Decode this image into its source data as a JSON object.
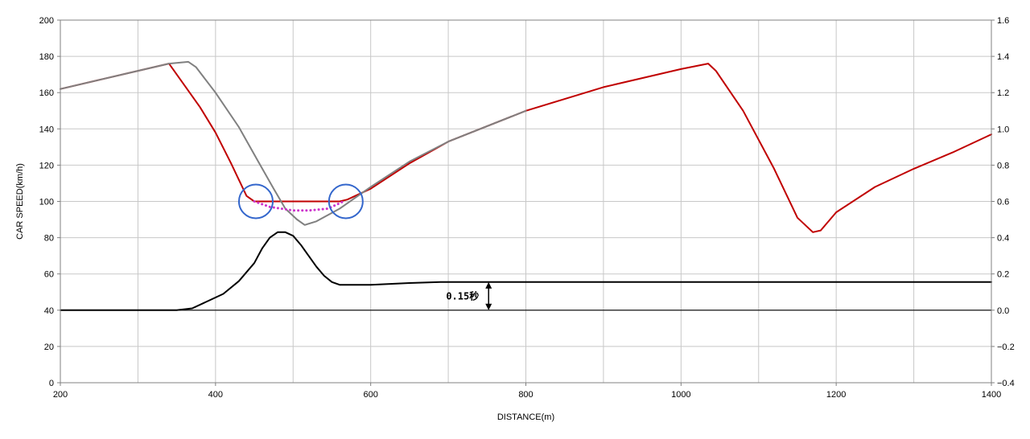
{
  "chart_data": {
    "type": "line",
    "title": "",
    "xlabel": "DISTANCE(m)",
    "ylabel": "CAR SPEED(km/h)",
    "xlim": [
      200,
      1400
    ],
    "ylim": [
      0,
      200
    ],
    "y2lim": [
      -0.4,
      1.6
    ],
    "grid": true,
    "x_ticks": [
      "200",
      "400",
      "600",
      "800",
      "1000",
      "1200",
      "1400"
    ],
    "y_ticks": [
      "0",
      "20",
      "40",
      "60",
      "80",
      "100",
      "120",
      "140",
      "160",
      "180",
      "200"
    ],
    "y2_ticks": [
      "-0.4",
      "-0.2",
      "0.0",
      "0.2",
      "0.4",
      "0.6",
      "0.8",
      "1.0",
      "1.2",
      "1.4",
      "1.6"
    ],
    "annotation": "0.15秒",
    "colors": {
      "speed_red": "#c00000",
      "speed_gray": "#808080",
      "ideal_dotted": "#cc33cc",
      "circle": "#3366cc",
      "time_diff": "#000000",
      "grid": "#c8c8c8"
    },
    "series": [
      {
        "axis": "left",
        "color": "#c00000",
        "x": [
          200,
          250,
          300,
          340,
          360,
          380,
          400,
          420,
          440,
          450,
          460,
          500,
          560,
          570,
          600,
          650,
          700,
          800,
          900,
          1000,
          1035,
          1045,
          1080,
          1120,
          1150,
          1170,
          1180,
          1200,
          1250,
          1300,
          1350,
          1400
        ],
        "y": [
          162,
          167,
          172,
          176,
          164,
          152,
          138,
          121,
          103,
          100,
          100,
          100,
          100,
          101,
          107,
          121,
          133,
          150,
          163,
          173,
          176,
          172,
          150,
          118,
          91,
          83,
          84,
          94,
          108,
          118,
          127,
          137
        ]
      },
      {
        "axis": "left",
        "color": "#808080",
        "x": [
          200,
          300,
          340,
          365,
          375,
          400,
          430,
          455,
          475,
          490,
          505,
          515,
          530,
          560,
          600,
          650,
          700,
          800
        ],
        "y": [
          162,
          172,
          176,
          177,
          174,
          160,
          141,
          122,
          107,
          96,
          90,
          87,
          89,
          96,
          108,
          122,
          133,
          150
        ]
      },
      {
        "axis": "left",
        "color": "#cc33cc",
        "style": "dotted",
        "x": [
          450,
          470,
          500,
          520,
          545,
          565
        ],
        "y": [
          100,
          97,
          95,
          95,
          96,
          100
        ]
      },
      {
        "axis": "right",
        "color": "#000000",
        "x": [
          200,
          350,
          370,
          390,
          410,
          430,
          450,
          460,
          470,
          480,
          490,
          500,
          510,
          520,
          530,
          540,
          550,
          560,
          600,
          650,
          690,
          700,
          1400
        ],
        "y": [
          0.0,
          0.0,
          0.01,
          0.05,
          0.09,
          0.16,
          0.26,
          0.34,
          0.4,
          0.43,
          0.43,
          0.41,
          0.36,
          0.3,
          0.24,
          0.19,
          0.155,
          0.14,
          0.14,
          0.15,
          0.155,
          0.155,
          0.155
        ]
      },
      {
        "axis": "right",
        "color": "#000000",
        "x": [
          200,
          1400
        ],
        "y": [
          0.0,
          0.0
        ]
      }
    ],
    "circles": [
      {
        "x": 452,
        "y": 100
      },
      {
        "x": 568,
        "y": 100
      }
    ],
    "arrow": {
      "x": 752,
      "y2_from": 0.0,
      "y2_to": 0.155
    }
  }
}
